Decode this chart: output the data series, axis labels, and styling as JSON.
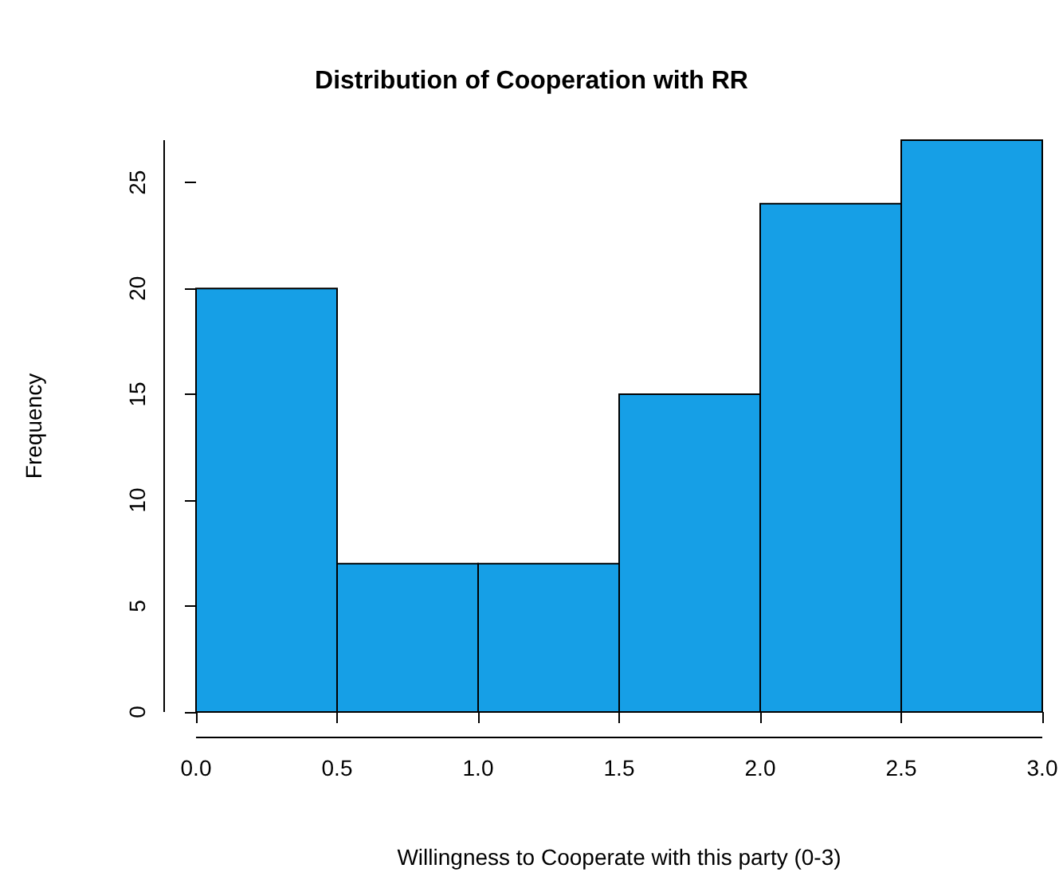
{
  "chart_data": {
    "type": "histogram",
    "title": "Distribution of Cooperation with RR",
    "xlabel": "Willingness to Cooperate with this party (0-3)",
    "ylabel": "Frequency",
    "bins": [
      0,
      0.5,
      1,
      1.5,
      2,
      2.5,
      3
    ],
    "values": [
      20,
      7,
      7,
      15,
      24,
      27
    ],
    "color": "#169fe6",
    "xlim": [
      0,
      3
    ],
    "xticks": [
      {
        "value": 0,
        "label": "0.0"
      },
      {
        "value": 0.5,
        "label": "0.5"
      },
      {
        "value": 1,
        "label": "1.0"
      },
      {
        "value": 1.5,
        "label": "1.5"
      },
      {
        "value": 2,
        "label": "2.0"
      },
      {
        "value": 2.5,
        "label": "2.5"
      },
      {
        "value": 3,
        "label": "3.0"
      }
    ],
    "ylim": [
      0,
      27
    ],
    "yticks": [
      0,
      5,
      10,
      15,
      20,
      25
    ],
    "grid": false
  }
}
